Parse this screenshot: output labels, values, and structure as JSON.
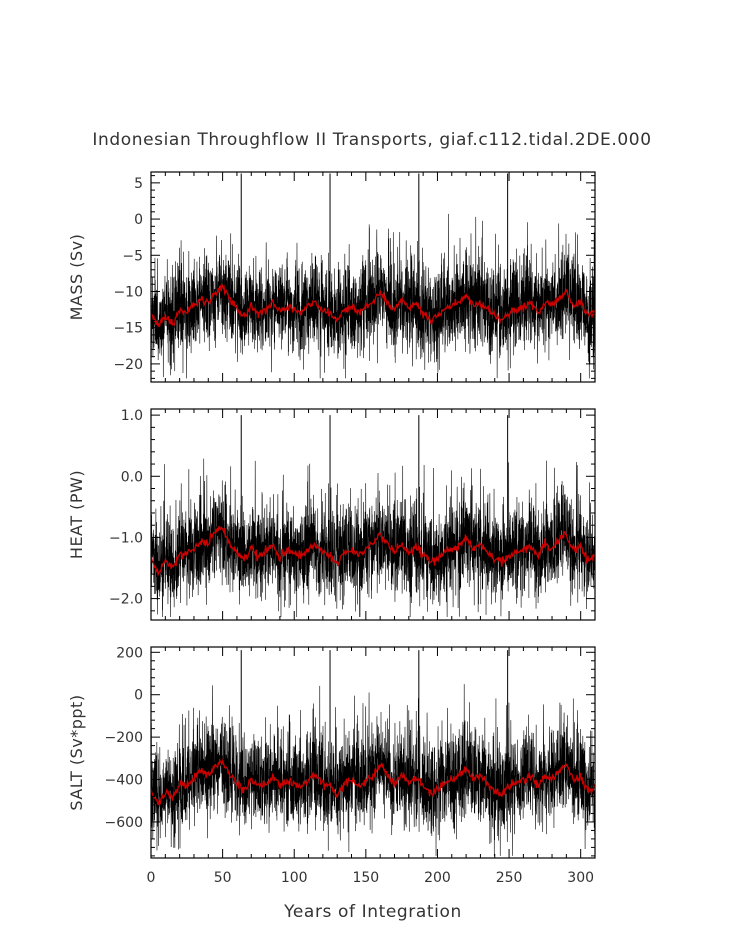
{
  "figure": {
    "title": "Indonesian Throughflow II Transports, giaf.c112.tidal.2DE.000",
    "xlabel": "Years of Integration"
  },
  "chart_data": [
    {
      "type": "line",
      "ylabel": "MASS (Sv)",
      "xlim": [
        0,
        310
      ],
      "ylim": [
        -22.5,
        6.5
      ],
      "xticks": [
        0,
        50,
        100,
        150,
        200,
        250,
        300
      ],
      "yticks": [
        5,
        0,
        -5,
        -10,
        -15,
        -20
      ],
      "ytick_labels": [
        "5",
        "0",
        "−5",
        "−10",
        "−15",
        "−20"
      ],
      "series": [
        {
          "color": "#000000",
          "kind": "monthly",
          "mean": -12.5,
          "std": 3.5,
          "min": -22.0,
          "max": 1.5,
          "spikes": {
            "x": [
              63,
              125,
              187,
              249
            ],
            "value": 6.3
          }
        },
        {
          "color": "#cc0000",
          "kind": "annual",
          "x": [
            0,
            5,
            10,
            15,
            20,
            25,
            30,
            35,
            40,
            45,
            50,
            55,
            60,
            65,
            70,
            75,
            80,
            85,
            90,
            95,
            100,
            105,
            110,
            115,
            120,
            125,
            130,
            135,
            140,
            145,
            150,
            155,
            160,
            165,
            170,
            175,
            180,
            185,
            190,
            195,
            200,
            205,
            210,
            215,
            220,
            225,
            230,
            235,
            240,
            245,
            250,
            255,
            260,
            265,
            270,
            275,
            280,
            285,
            290,
            295,
            300,
            305,
            310
          ],
          "values": [
            -13,
            -15,
            -13.5,
            -14.5,
            -12.5,
            -13,
            -12,
            -11,
            -11.5,
            -10,
            -9.5,
            -11,
            -12.5,
            -13.5,
            -12,
            -13,
            -12.5,
            -11.5,
            -13,
            -12,
            -12.5,
            -13,
            -12,
            -11.5,
            -12.5,
            -13,
            -14,
            -12.5,
            -12,
            -13,
            -12,
            -11.5,
            -10,
            -11.5,
            -12.5,
            -11,
            -12.5,
            -11.5,
            -13,
            -14,
            -13.5,
            -12.5,
            -12,
            -11.5,
            -10.5,
            -12,
            -11.5,
            -12.5,
            -13.5,
            -14,
            -13,
            -12.5,
            -12,
            -11.5,
            -13,
            -11.5,
            -12,
            -11,
            -10,
            -12,
            -11.5,
            -13.5,
            -12.5
          ]
        }
      ]
    },
    {
      "type": "line",
      "ylabel": "HEAT (PW)",
      "xlim": [
        0,
        310
      ],
      "ylim": [
        -2.35,
        1.1
      ],
      "xticks": [
        0,
        50,
        100,
        150,
        200,
        250,
        300
      ],
      "yticks": [
        1.0,
        0.0,
        -1.0,
        -2.0
      ],
      "ytick_labels": [
        "1.0",
        "0.0",
        "−1.0",
        "−2.0"
      ],
      "series": [
        {
          "color": "#000000",
          "kind": "monthly",
          "mean": -1.25,
          "std": 0.42,
          "min": -2.3,
          "max": 0.35,
          "spikes": {
            "x": [
              63,
              125,
              187,
              249
            ],
            "value": 1.0
          }
        },
        {
          "color": "#cc0000",
          "kind": "annual",
          "x": [
            0,
            5,
            10,
            15,
            20,
            25,
            30,
            35,
            40,
            45,
            50,
            55,
            60,
            65,
            70,
            75,
            80,
            85,
            90,
            95,
            100,
            105,
            110,
            115,
            120,
            125,
            130,
            135,
            140,
            145,
            150,
            155,
            160,
            165,
            170,
            175,
            180,
            185,
            190,
            195,
            200,
            205,
            210,
            215,
            220,
            225,
            230,
            235,
            240,
            245,
            250,
            255,
            260,
            265,
            270,
            275,
            280,
            285,
            290,
            295,
            300,
            305,
            310
          ],
          "values": [
            -1.3,
            -1.6,
            -1.4,
            -1.5,
            -1.3,
            -1.25,
            -1.2,
            -1.05,
            -1.1,
            -0.9,
            -0.85,
            -1.1,
            -1.25,
            -1.35,
            -1.2,
            -1.3,
            -1.25,
            -1.1,
            -1.3,
            -1.2,
            -1.25,
            -1.3,
            -1.2,
            -1.1,
            -1.25,
            -1.3,
            -1.45,
            -1.25,
            -1.2,
            -1.3,
            -1.2,
            -1.1,
            -0.95,
            -1.1,
            -1.25,
            -1.1,
            -1.25,
            -1.15,
            -1.3,
            -1.4,
            -1.35,
            -1.25,
            -1.2,
            -1.15,
            -1.0,
            -1.2,
            -1.1,
            -1.25,
            -1.35,
            -1.4,
            -1.3,
            -1.25,
            -1.2,
            -1.15,
            -1.3,
            -1.1,
            -1.2,
            -1.05,
            -0.95,
            -1.2,
            -1.15,
            -1.4,
            -1.3
          ]
        }
      ]
    },
    {
      "type": "line",
      "ylabel": "SALT (Sv*ppt)",
      "xlim": [
        0,
        310
      ],
      "ylim": [
        -770,
        225
      ],
      "xticks": [
        0,
        50,
        100,
        150,
        200,
        250,
        300
      ],
      "yticks": [
        200,
        0,
        -200,
        -400,
        -600
      ],
      "ytick_labels": [
        "200",
        "0",
        "−200",
        "−400",
        "−600"
      ],
      "series": [
        {
          "color": "#000000",
          "kind": "monthly",
          "mean": -420,
          "std": 120,
          "min": -760,
          "max": 50,
          "spikes": {
            "x": [
              63,
              125,
              187,
              249
            ],
            "value": 210
          }
        },
        {
          "color": "#cc0000",
          "kind": "annual",
          "x": [
            0,
            5,
            10,
            15,
            20,
            25,
            30,
            35,
            40,
            45,
            50,
            55,
            60,
            65,
            70,
            75,
            80,
            85,
            90,
            95,
            100,
            105,
            110,
            115,
            120,
            125,
            130,
            135,
            140,
            145,
            150,
            155,
            160,
            165,
            170,
            175,
            180,
            185,
            190,
            195,
            200,
            205,
            210,
            215,
            220,
            225,
            230,
            235,
            240,
            245,
            250,
            255,
            260,
            265,
            270,
            275,
            280,
            285,
            290,
            295,
            300,
            305,
            310
          ],
          "values": [
            -440,
            -520,
            -460,
            -490,
            -420,
            -430,
            -400,
            -360,
            -380,
            -330,
            -320,
            -370,
            -420,
            -450,
            -400,
            -430,
            -420,
            -390,
            -430,
            -400,
            -420,
            -440,
            -400,
            -380,
            -420,
            -430,
            -480,
            -420,
            -400,
            -430,
            -400,
            -380,
            -330,
            -380,
            -420,
            -370,
            -420,
            -390,
            -430,
            -470,
            -450,
            -420,
            -400,
            -380,
            -350,
            -400,
            -380,
            -420,
            -450,
            -470,
            -430,
            -420,
            -400,
            -380,
            -430,
            -380,
            -400,
            -360,
            -330,
            -400,
            -390,
            -460,
            -430
          ]
        }
      ]
    }
  ]
}
